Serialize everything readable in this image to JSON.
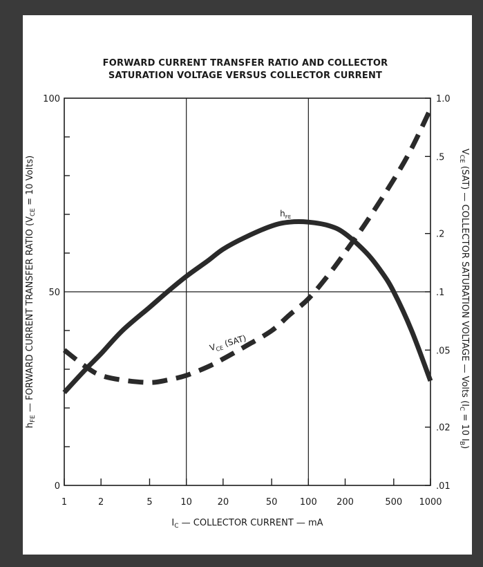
{
  "chart_data": {
    "type": "line",
    "title": "FORWARD CURRENT TRANSFER RATIO AND COLLECTOR SATURATION VOLTAGE VERSUS COLLECTOR CURRENT",
    "title_lines": [
      "FORWARD CURRENT TRANSFER RATIO AND COLLECTOR",
      "SATURATION VOLTAGE VERSUS COLLECTOR CURRENT"
    ],
    "x_axis": {
      "label_main": "I",
      "label_sub": "C",
      "label_rest": " — COLLECTOR CURRENT — mA",
      "scale": "log",
      "range": [
        1,
        1000
      ],
      "ticks": [
        "1",
        "2",
        "5",
        "10",
        "20",
        "50",
        "100",
        "200",
        "500",
        "1000"
      ]
    },
    "y_left": {
      "label_main": "h",
      "label_sub": "FE",
      "label_rest": " — FORWARD CURRENT TRANSFER RATIO (V",
      "label_sub2": "CE",
      "label_end": " = 10 Volts)",
      "scale": "linear",
      "range": [
        0,
        100
      ],
      "ticks": [
        "0",
        "50",
        "100"
      ]
    },
    "y_right": {
      "label_main": "V",
      "label_sub": "CE",
      "label_rest": " (SAT) — COLLECTOR SATURATION VOLTAGE — Volts (I",
      "label_sub2": "C",
      "label_mid": " = 10 I",
      "label_sub3": "B",
      "label_end": ")",
      "scale": "log",
      "range": [
        0.01,
        1.0
      ],
      "ticks": [
        ".01",
        ".02",
        ".05",
        ".1",
        ".2",
        ".5",
        "1.0"
      ]
    },
    "grid": "major decades",
    "series": [
      {
        "name_main": "h",
        "name_sub": "FE",
        "axis": "left",
        "style": "solid",
        "x": [
          1,
          1.5,
          2,
          3,
          5,
          7,
          10,
          15,
          20,
          30,
          50,
          70,
          100,
          150,
          200,
          300,
          400,
          500,
          700,
          1000
        ],
        "y": [
          24,
          30,
          34,
          40,
          46,
          50,
          54,
          58,
          61,
          64,
          67,
          68,
          68,
          67,
          65,
          60,
          55,
          50,
          40,
          27
        ]
      },
      {
        "name_main": "V",
        "name_sub": "CE",
        "name_rest": " (SAT)",
        "axis": "right",
        "style": "dashed",
        "x": [
          1,
          1.5,
          2,
          3,
          5,
          7,
          10,
          15,
          20,
          30,
          50,
          70,
          100,
          150,
          200,
          300,
          500,
          700,
          1000
        ],
        "y": [
          0.05,
          0.041,
          0.037,
          0.035,
          0.034,
          0.035,
          0.037,
          0.041,
          0.045,
          0.052,
          0.063,
          0.076,
          0.092,
          0.125,
          0.16,
          0.23,
          0.38,
          0.55,
          0.88
        ]
      }
    ]
  }
}
